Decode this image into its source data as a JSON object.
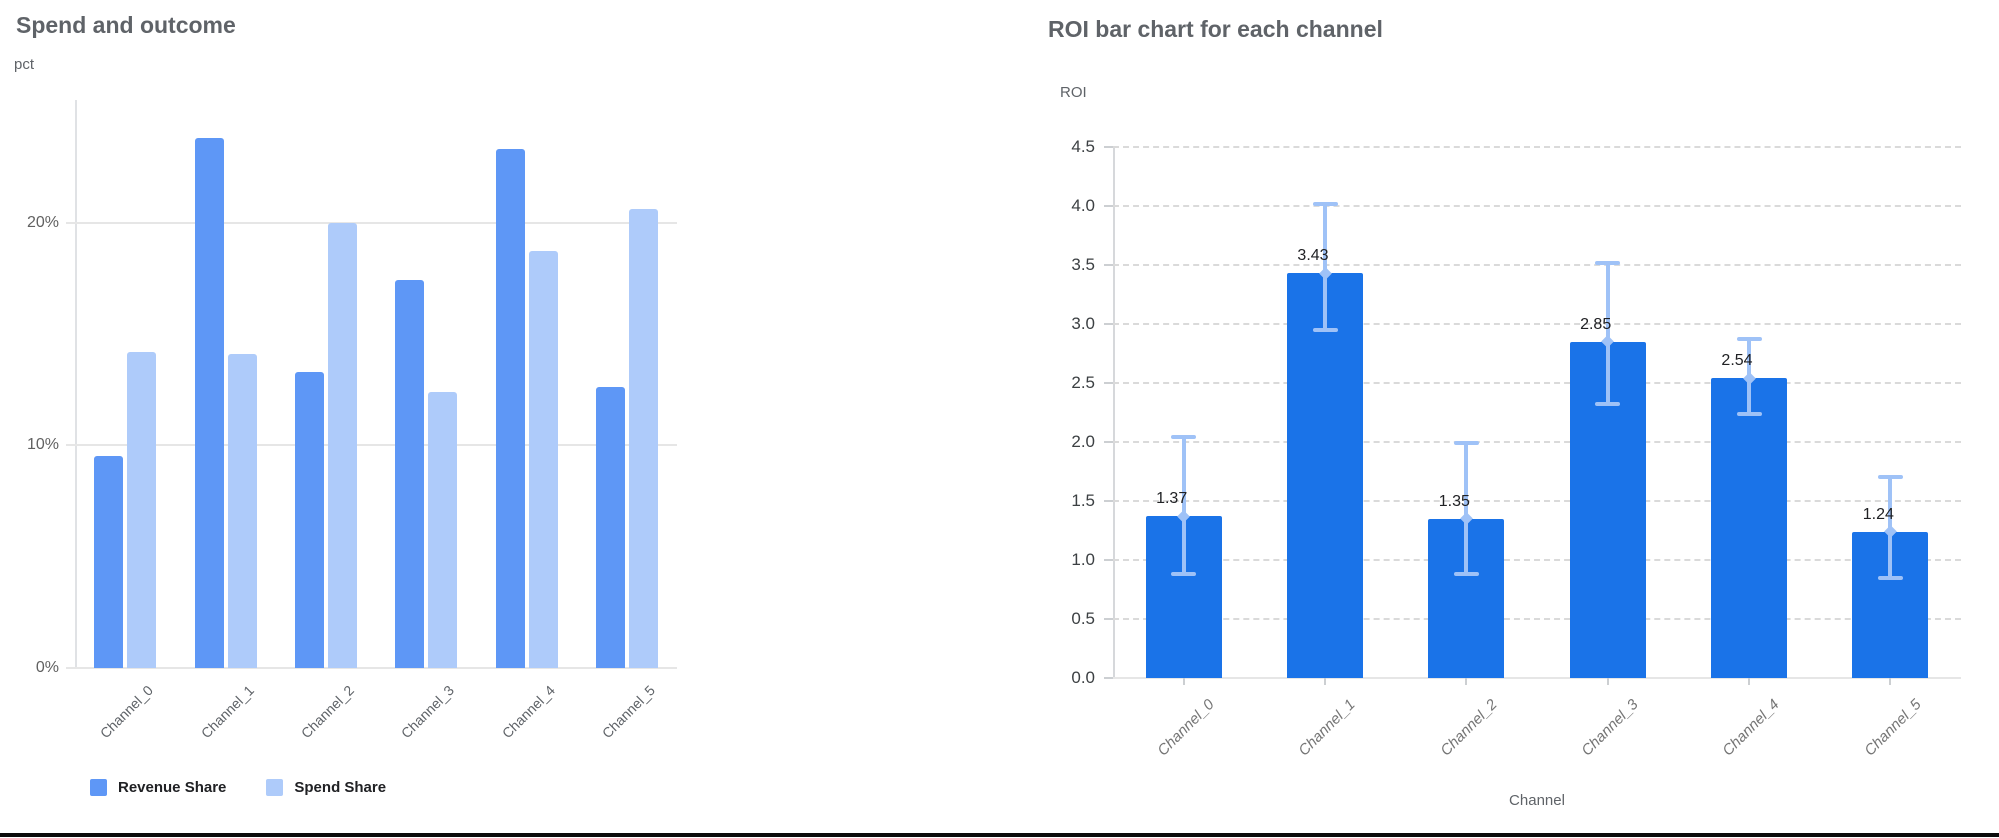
{
  "chart_data": [
    {
      "id": "spend-and-outcome",
      "type": "bar",
      "title": "Spend and outcome",
      "ylabel": "pct",
      "xlabel": "",
      "categories": [
        "Channel_0",
        "Channel_1",
        "Channel_2",
        "Channel_3",
        "Channel_4",
        "Channel_5"
      ],
      "series": [
        {
          "name": "Revenue Share",
          "color": "#5e97f6",
          "values": [
            9.5,
            23.8,
            13.3,
            17.4,
            23.3,
            12.6
          ]
        },
        {
          "name": "Spend Share",
          "color": "#aecbfa",
          "values": [
            14.2,
            14.1,
            20.0,
            12.4,
            18.7,
            20.6
          ]
        }
      ],
      "y_ticks": [
        {
          "value": 0,
          "label": "0%"
        },
        {
          "value": 10,
          "label": "10%"
        },
        {
          "value": 20,
          "label": "20%"
        }
      ],
      "ylim": [
        0,
        25.5
      ],
      "grid": "solid",
      "legend_position": "bottom"
    },
    {
      "id": "roi-per-channel",
      "type": "bar",
      "title": "ROI bar chart for each channel",
      "ylabel": "ROI",
      "xlabel": "Channel",
      "categories": [
        "Channel_0",
        "Channel_1",
        "Channel_2",
        "Channel_3",
        "Channel_4",
        "Channel_5"
      ],
      "series": [
        {
          "name": "ROI",
          "color": "#1a73e8",
          "values": [
            1.37,
            3.43,
            1.35,
            2.85,
            2.54,
            1.24
          ]
        }
      ],
      "data_labels": [
        "1.37",
        "3.43",
        "1.35",
        "2.85",
        "2.54",
        "1.24"
      ],
      "error_bars": {
        "color": "#9fc2f7",
        "low": [
          0.88,
          2.95,
          0.88,
          2.32,
          2.24,
          0.85
        ],
        "high": [
          2.04,
          4.02,
          1.99,
          3.52,
          2.87,
          1.7
        ]
      },
      "y_ticks": [
        {
          "value": 0.0,
          "label": "0.0"
        },
        {
          "value": 0.5,
          "label": "0.5"
        },
        {
          "value": 1.0,
          "label": "1.0"
        },
        {
          "value": 1.5,
          "label": "1.5"
        },
        {
          "value": 2.0,
          "label": "2.0"
        },
        {
          "value": 2.5,
          "label": "2.5"
        },
        {
          "value": 3.0,
          "label": "3.0"
        },
        {
          "value": 3.5,
          "label": "3.5"
        },
        {
          "value": 4.0,
          "label": "4.0"
        },
        {
          "value": 4.5,
          "label": "4.5"
        }
      ],
      "ylim": [
        0,
        4.5
      ],
      "grid": "dashed",
      "legend_position": "none"
    }
  ]
}
